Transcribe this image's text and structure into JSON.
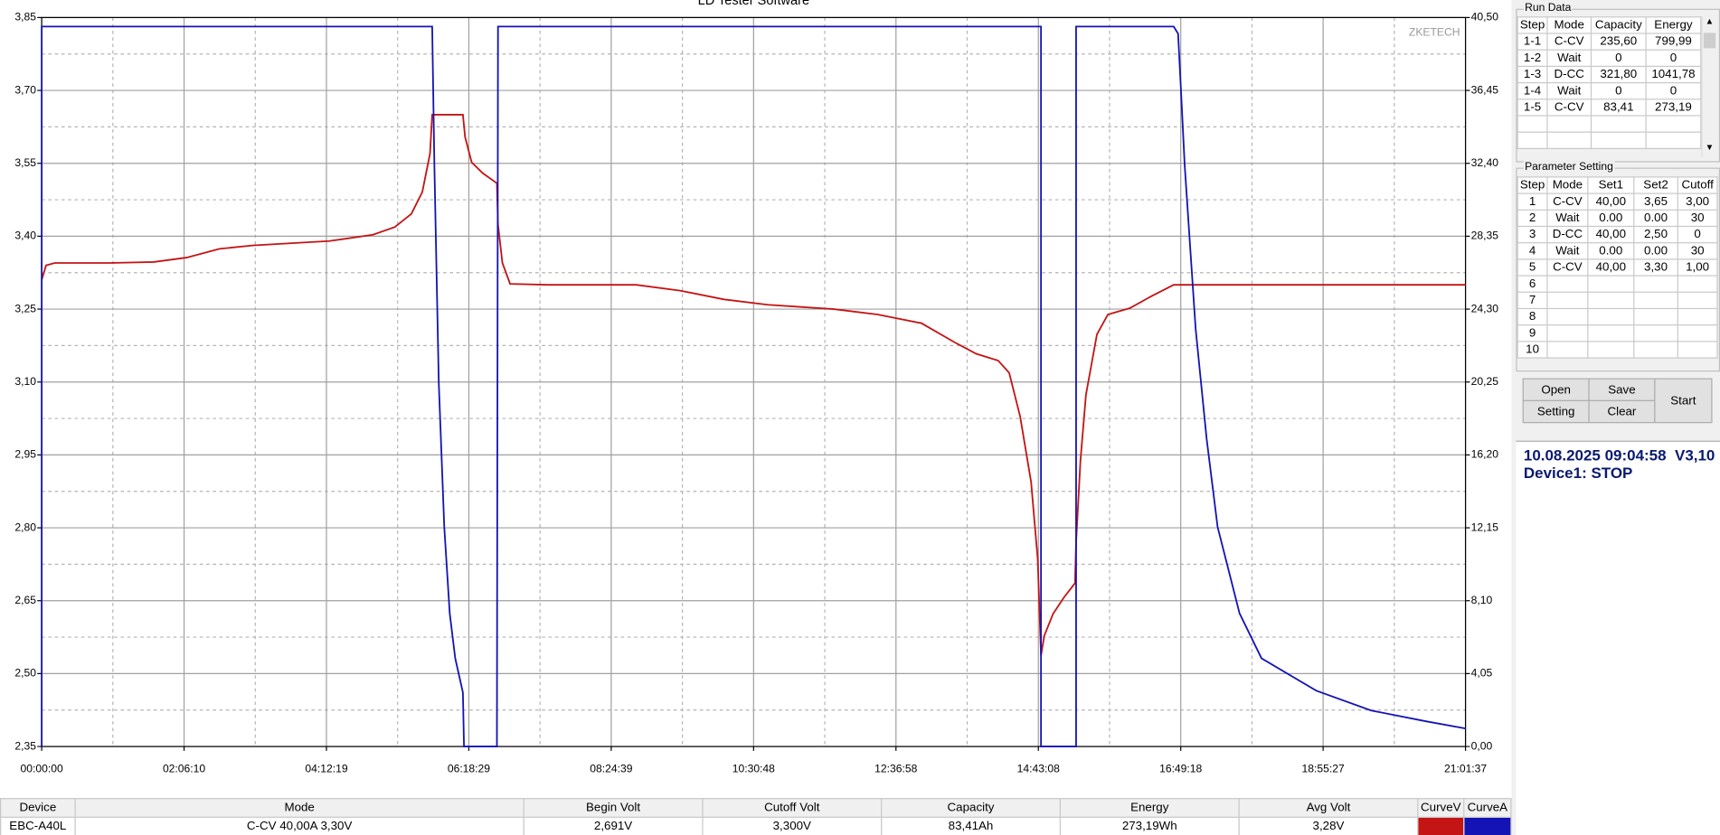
{
  "chart_data": {
    "type": "line",
    "title": "LD Tester Software",
    "watermark": "ZKETECH",
    "xlim": [
      0,
      75697
    ],
    "xticks": [
      {
        "value": 0,
        "label": "00:00:00"
      },
      {
        "value": 7570,
        "label": "02:06:10"
      },
      {
        "value": 15139,
        "label": "04:12:19"
      },
      {
        "value": 22709,
        "label": "06:18:29"
      },
      {
        "value": 30279,
        "label": "08:24:39"
      },
      {
        "value": 37848,
        "label": "10:30:48"
      },
      {
        "value": 45418,
        "label": "12:36:58"
      },
      {
        "value": 52988,
        "label": "14:43:08"
      },
      {
        "value": 60558,
        "label": "16:49:18"
      },
      {
        "value": 68127,
        "label": "18:55:27"
      },
      {
        "value": 75697,
        "label": "21:01:37"
      }
    ],
    "ylim": [
      2.35,
      3.85
    ],
    "yticks": [
      {
        "value": 3.85,
        "label": "3,85"
      },
      {
        "value": 3.7,
        "label": "3,70"
      },
      {
        "value": 3.55,
        "label": "3,55"
      },
      {
        "value": 3.4,
        "label": "3,40"
      },
      {
        "value": 3.25,
        "label": "3,25"
      },
      {
        "value": 3.1,
        "label": "3,10"
      },
      {
        "value": 2.95,
        "label": "2,95"
      },
      {
        "value": 2.8,
        "label": "2,80"
      },
      {
        "value": 2.65,
        "label": "2,65"
      },
      {
        "value": 2.5,
        "label": "2,50"
      },
      {
        "value": 2.35,
        "label": "2,35"
      }
    ],
    "y2lim": [
      0,
      40.5
    ],
    "y2ticks": [
      {
        "value": 40.5,
        "label": "40,50"
      },
      {
        "value": 36.45,
        "label": "36,45"
      },
      {
        "value": 32.4,
        "label": "32,40"
      },
      {
        "value": 28.35,
        "label": "28,35"
      },
      {
        "value": 24.3,
        "label": "24,30"
      },
      {
        "value": 20.25,
        "label": "20,25"
      },
      {
        "value": 16.2,
        "label": "16,20"
      },
      {
        "value": 12.15,
        "label": "12,15"
      },
      {
        "value": 8.1,
        "label": "8,10"
      },
      {
        "value": 4.05,
        "label": "4,05"
      },
      {
        "value": 0,
        "label": "0,00"
      }
    ],
    "grid": true,
    "minor_grid": true,
    "series": [
      {
        "name": "CurveV",
        "color": "#c41414",
        "x": [
          0,
          233,
          700,
          3616,
          5948,
          7698,
          9448,
          11197,
          15279,
          17612,
          18778,
          19653,
          20236,
          20645,
          20761,
          22394,
          22511,
          22861,
          23444,
          24202,
          24260,
          24494,
          24902,
          26943,
          31608,
          33941,
          36274,
          38607,
          42106,
          44438,
          46771,
          48521,
          49687,
          50853,
          51436,
          52020,
          52603,
          52953,
          53128,
          53303,
          53769,
          54352,
          54935,
          54994,
          55227,
          55519,
          56102,
          56685,
          57851,
          59018,
          60184,
          75697
        ],
        "values": [
          3.31,
          3.34,
          3.345,
          3.345,
          3.347,
          3.356,
          3.374,
          3.381,
          3.39,
          3.403,
          3.419,
          3.446,
          3.491,
          3.57,
          3.65,
          3.65,
          3.604,
          3.552,
          3.53,
          3.509,
          3.424,
          3.345,
          3.302,
          3.3,
          3.3,
          3.288,
          3.27,
          3.259,
          3.25,
          3.239,
          3.221,
          3.182,
          3.158,
          3.144,
          3.119,
          3.029,
          2.894,
          2.736,
          2.537,
          2.578,
          2.623,
          2.657,
          2.686,
          2.77,
          2.939,
          3.074,
          3.198,
          3.239,
          3.252,
          3.277,
          3.3,
          3.3
        ]
      },
      {
        "name": "CurveA",
        "color": "#1414b4",
        "axis": "y2",
        "x": [
          0,
          0,
          20761,
          20878,
          21111,
          21403,
          21694,
          21986,
          22394,
          22452,
          24202,
          24260,
          53128,
          53128,
          54994,
          54994,
          60184,
          60417,
          60534,
          60767,
          61350,
          61934,
          62517,
          63683,
          64850,
          67766,
          70682,
          73597,
          75697
        ],
        "values": [
          0,
          40,
          40,
          32.3,
          20.2,
          12.2,
          7.4,
          4.9,
          3.0,
          0,
          0,
          40,
          40,
          0,
          0,
          40,
          40,
          39.6,
          37.2,
          32.3,
          23.2,
          17.1,
          12.2,
          7.4,
          4.9,
          3.1,
          2.0,
          1.4,
          1.0
        ]
      }
    ]
  },
  "run_data": {
    "title": "Run Data",
    "headers": [
      "Step",
      "Mode",
      "Capacity",
      "Energy"
    ],
    "rows": [
      [
        "1-1",
        "C-CV",
        "235,60",
        "799,99"
      ],
      [
        "1-2",
        "Wait",
        "0",
        "0"
      ],
      [
        "1-3",
        "D-CC",
        "321,80",
        "1041,78"
      ],
      [
        "1-4",
        "Wait",
        "0",
        "0"
      ],
      [
        "1-5",
        "C-CV",
        "83,41",
        "273,19"
      ]
    ]
  },
  "parameter_setting": {
    "title": "Parameter Setting",
    "headers": [
      "Step",
      "Mode",
      "Set1",
      "Set2",
      "Cutoff"
    ],
    "rows": [
      [
        "1",
        "C-CV",
        "40,00",
        "3,65",
        "3,00"
      ],
      [
        "2",
        "Wait",
        "0.00",
        "0.00",
        "30"
      ],
      [
        "3",
        "D-CC",
        "40,00",
        "2,50",
        "0"
      ],
      [
        "4",
        "Wait",
        "0.00",
        "0.00",
        "30"
      ],
      [
        "5",
        "C-CV",
        "40,00",
        "3,30",
        "1,00"
      ],
      [
        "6"
      ],
      [
        "7"
      ],
      [
        "8"
      ],
      [
        "9"
      ],
      [
        "10"
      ]
    ]
  },
  "buttons": [
    "Open",
    "Save",
    "Setting",
    "Clear",
    "Start"
  ],
  "status": {
    "datetime": "10.08.2025 09:04:58",
    "version": "V3,10",
    "device": "Device1: STOP"
  },
  "summary": {
    "headers": [
      "Device",
      "Mode",
      "Begin Volt",
      "Cutoff Volt",
      "Capacity",
      "Energy",
      "Avg Volt"
    ],
    "row": [
      "EBC-A40L",
      "C-CV  40,00A  3,30V",
      "2,691V",
      "3,300V",
      "83,41Ah",
      "273,19Wh",
      "3,28V"
    ]
  }
}
